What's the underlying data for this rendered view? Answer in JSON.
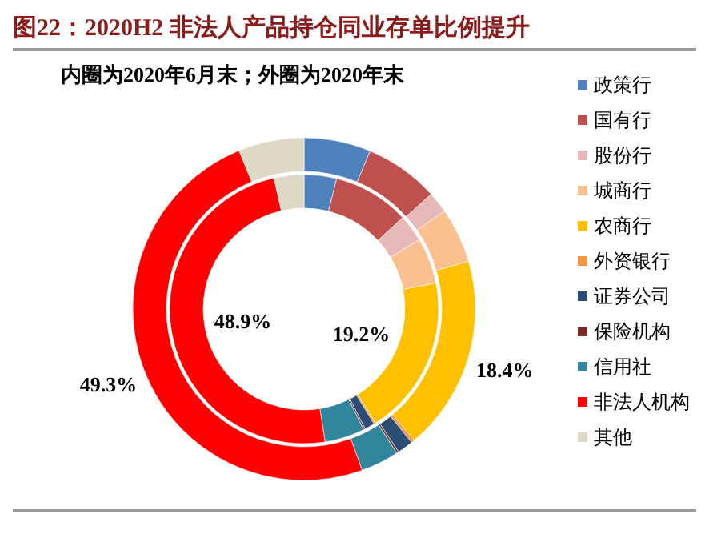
{
  "chart_data": {
    "type": "donut",
    "title": "图22：2020H2 非法人产品持仓同业存单比例提升",
    "subtitle": "内圈为2020年6月末；外圈为2020年末",
    "categories": [
      "政策行",
      "国有行",
      "股份行",
      "城商行",
      "农商行",
      "外资银行",
      "证券公司",
      "保险机构",
      "信用社",
      "非法人机构",
      "其他"
    ],
    "colors": [
      "#4f81bd",
      "#c0504d",
      "#e6b9b8",
      "#fac090",
      "#ffc000",
      "#f79646",
      "#2c4d75",
      "#772c2a",
      "#31859c",
      "#ff0000",
      "#ddd9c4"
    ],
    "series": [
      {
        "values": [
          3.9,
          9.2,
          3.3,
          5.5,
          19.2,
          0.2,
          1.2,
          0.2,
          4.8,
          48.9,
          3.6
        ],
        "value_labels": [
          null,
          null,
          null,
          null,
          "19.2%",
          null,
          null,
          null,
          null,
          "48.9%",
          null
        ]
      },
      {
        "values": [
          6.3,
          7.0,
          2.0,
          5.2,
          18.4,
          0.3,
          1.5,
          0.2,
          3.6,
          49.3,
          6.2
        ],
        "value_labels": [
          null,
          null,
          null,
          null,
          "18.4%",
          null,
          null,
          null,
          null,
          "49.3%",
          null
        ]
      }
    ],
    "legend": "right"
  }
}
